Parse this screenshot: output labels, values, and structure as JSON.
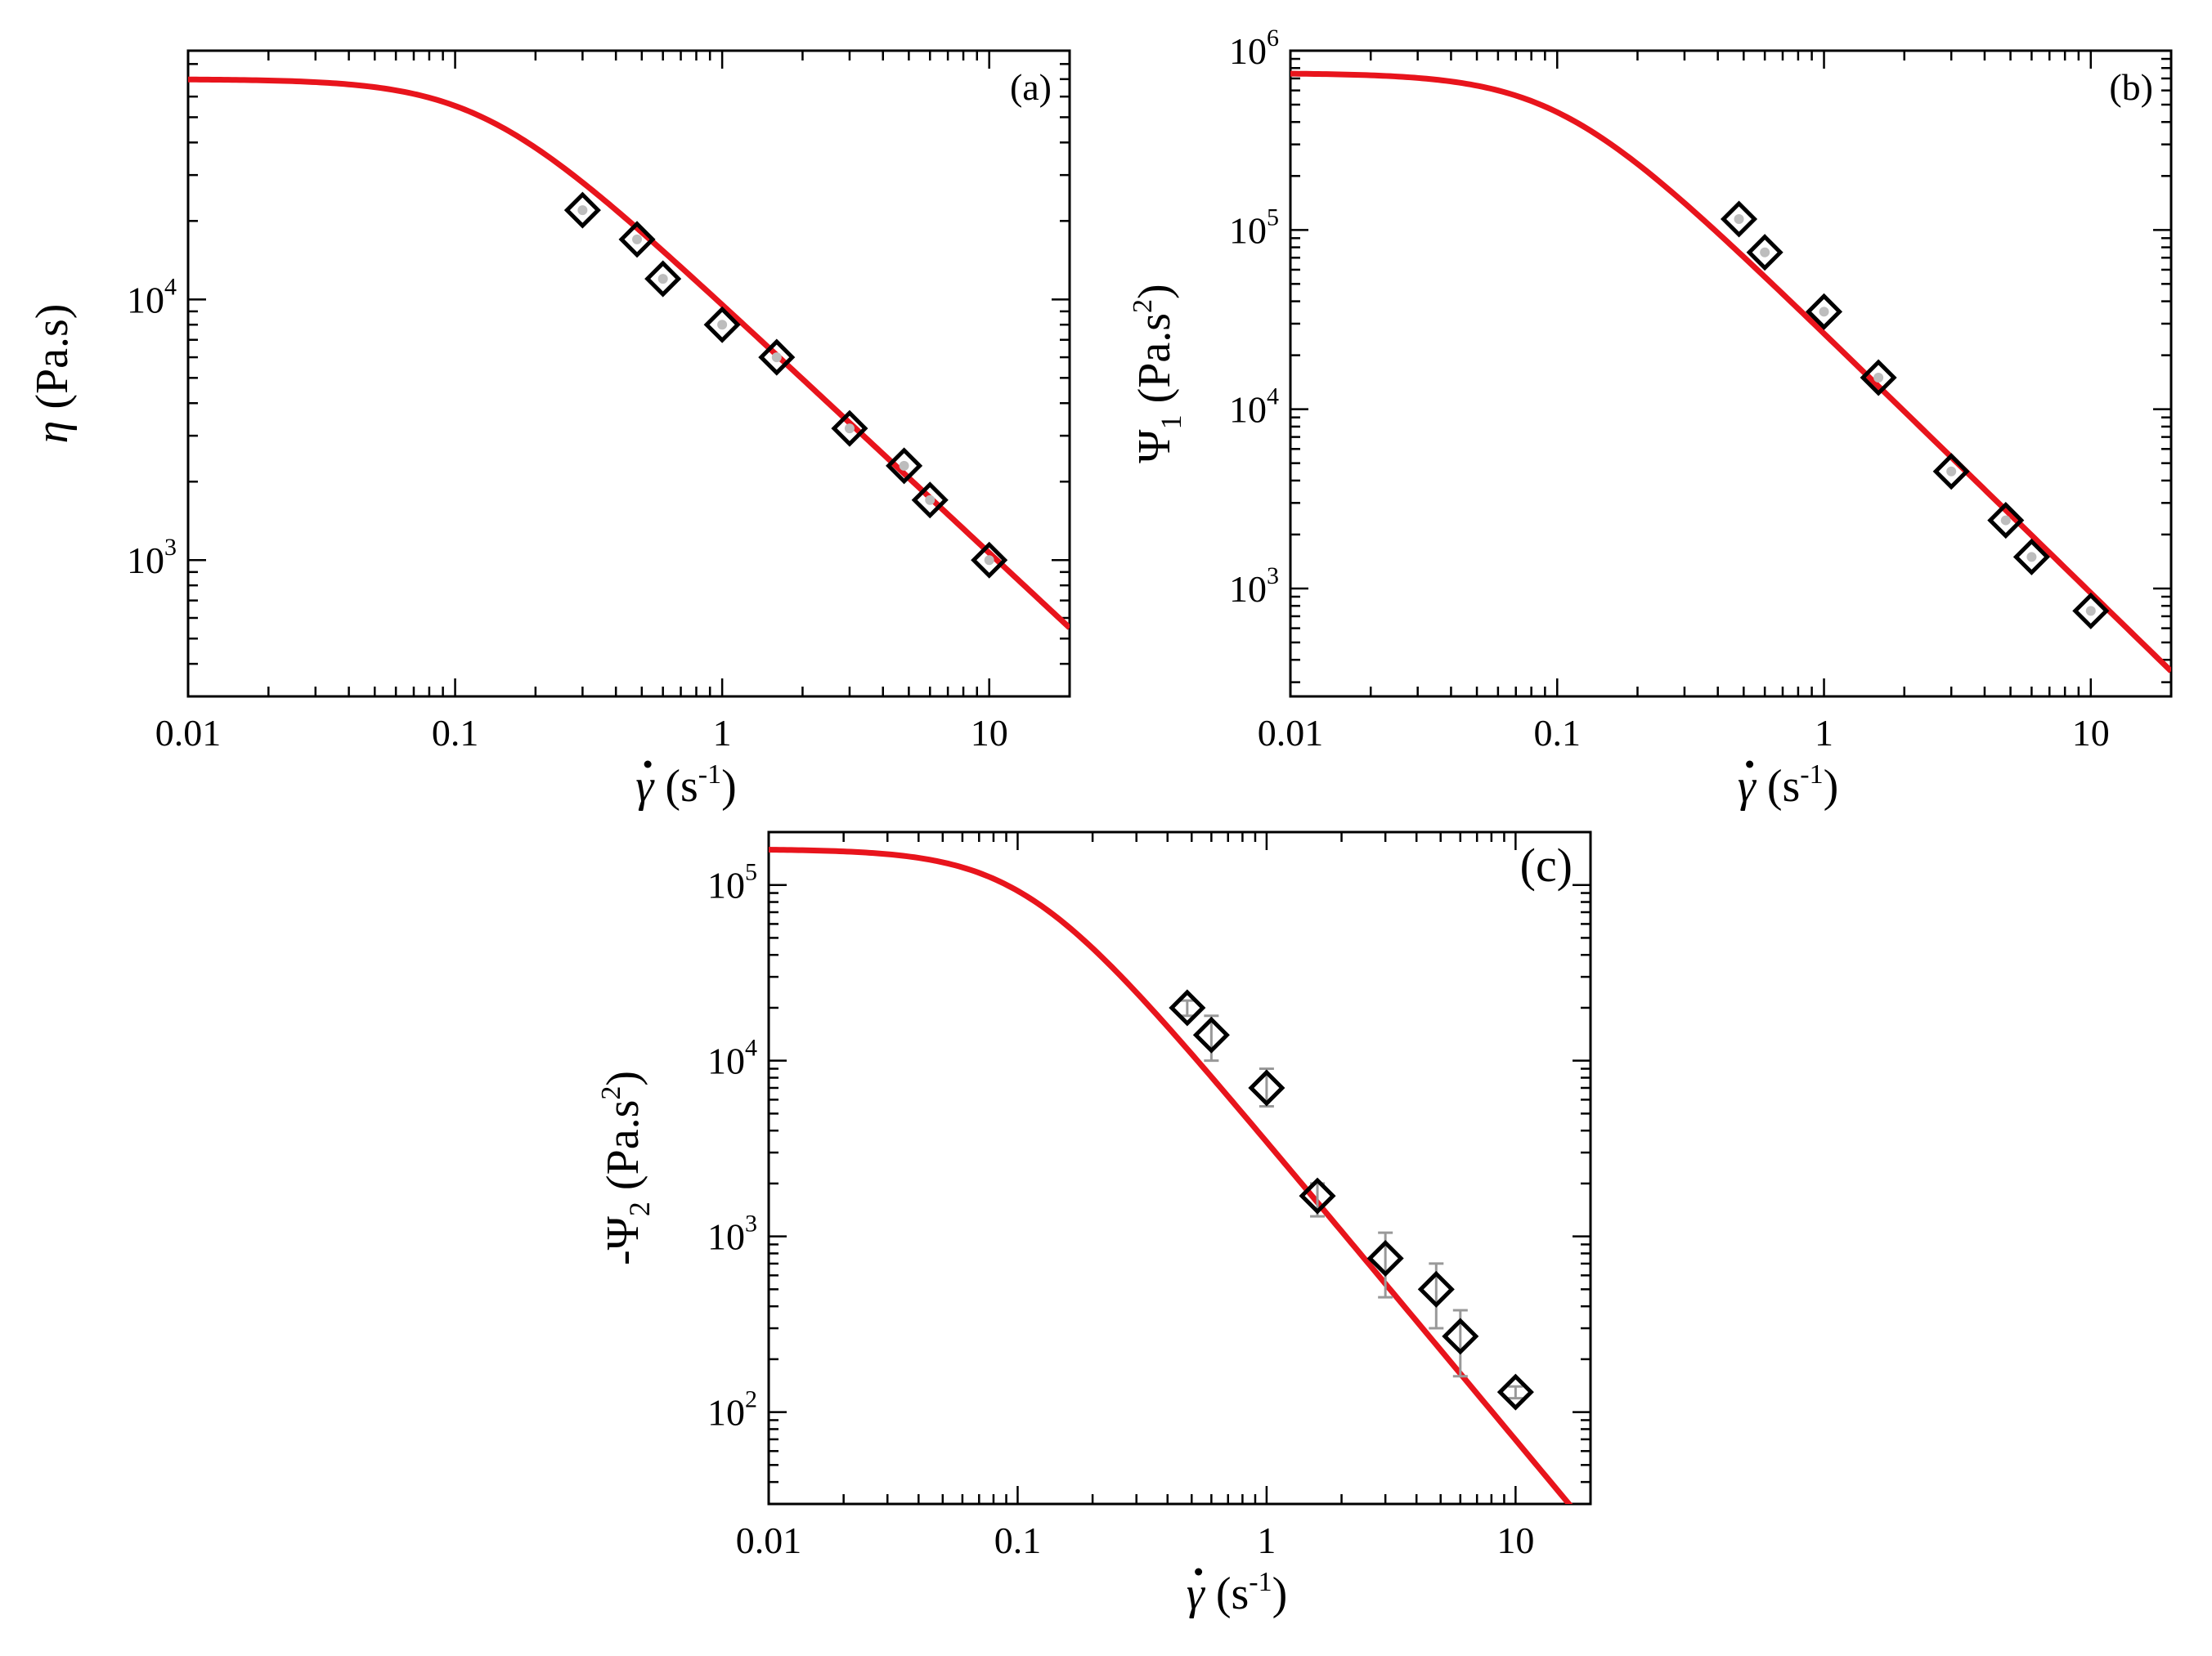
{
  "chart_data": [
    {
      "type": "scatter",
      "panel_label": "(a)",
      "xlabel_symbol": "γ",
      "xlabel_unit": " (s",
      "xlabel_exp": "-1",
      "xlabel_close": ")",
      "ylabel_symbol": "η",
      "ylabel_unit": " (Pa.s)",
      "x_scale": "log",
      "y_scale": "log",
      "xlim": [
        0.01,
        20
      ],
      "ylim": [
        300,
        90000
      ],
      "x_ticks": [
        0.01,
        0.1,
        1,
        10
      ],
      "x_tick_labels": [
        "0.01",
        "0.1",
        "1",
        "10"
      ],
      "y_ticks": [
        1000,
        10000
      ],
      "y_tick_labels": [
        {
          "base": "10",
          "exp": "3"
        },
        {
          "base": "10",
          "exp": "4"
        }
      ],
      "series": [
        {
          "kind": "markers",
          "marker": "diamond",
          "x": [
            0.3,
            0.48,
            0.6,
            1.0,
            1.6,
            3.0,
            4.8,
            6.0,
            10.0
          ],
          "y": [
            22000,
            17000,
            12000,
            8000,
            6000,
            3200,
            2300,
            1700,
            1000
          ]
        },
        {
          "kind": "line",
          "color": "#e8141c",
          "model": {
            "zero": 70000,
            "lambda": 8.0,
            "n": 0.045
          }
        }
      ]
    },
    {
      "type": "scatter",
      "panel_label": "(b)",
      "xlabel_symbol": "γ",
      "xlabel_unit": " (s",
      "xlabel_exp": "-1",
      "xlabel_close": ")",
      "ylabel_symbol": "Ψ",
      "ylabel_sub": "1",
      "ylabel_unit": " (Pa.s",
      "ylabel_exp": "2",
      "ylabel_close": ")",
      "x_scale": "log",
      "y_scale": "log",
      "xlim": [
        0.01,
        20
      ],
      "ylim": [
        250,
        1000000
      ],
      "x_ticks": [
        0.01,
        0.1,
        1,
        10
      ],
      "x_tick_labels": [
        "0.01",
        "0.1",
        "1",
        "10"
      ],
      "y_ticks": [
        1000,
        10000,
        100000,
        1000000
      ],
      "y_tick_labels": [
        {
          "base": "10",
          "exp": "3"
        },
        {
          "base": "10",
          "exp": "4"
        },
        {
          "base": "10",
          "exp": "5"
        },
        {
          "base": "10",
          "exp": "6"
        }
      ],
      "series": [
        {
          "kind": "markers",
          "marker": "diamond",
          "x": [
            0.48,
            0.6,
            1.0,
            1.6,
            3.0,
            4.8,
            6.0,
            10.0
          ],
          "y": [
            115000,
            75000,
            35000,
            15000,
            4500,
            2400,
            1500,
            750
          ]
        },
        {
          "kind": "line",
          "color": "#e8141c",
          "model": {
            "zero": 750000,
            "lambda": 10.0,
            "n": -0.45
          }
        }
      ]
    },
    {
      "type": "scatter",
      "panel_label": "(c)",
      "xlabel_symbol": "γ",
      "xlabel_unit": " (s",
      "xlabel_exp": "-1",
      "xlabel_close": ")",
      "ylabel_symbol": "-Ψ",
      "ylabel_sub": "2",
      "ylabel_unit": " (Pa.s",
      "ylabel_exp": "2",
      "ylabel_close": ")",
      "x_scale": "log",
      "y_scale": "log",
      "xlim": [
        0.01,
        20
      ],
      "ylim": [
        30,
        200000
      ],
      "x_ticks": [
        0.01,
        0.1,
        1,
        10
      ],
      "x_tick_labels": [
        "0.01",
        "0.1",
        "1",
        "10"
      ],
      "y_ticks": [
        100,
        1000,
        10000,
        100000
      ],
      "y_tick_labels": [
        {
          "base": "10",
          "exp": "2"
        },
        {
          "base": "10",
          "exp": "3"
        },
        {
          "base": "10",
          "exp": "4"
        },
        {
          "base": "10",
          "exp": "5"
        }
      ],
      "series": [
        {
          "kind": "markers",
          "marker": "diamond",
          "x": [
            0.48,
            0.6,
            1.0,
            1.6,
            3.0,
            4.8,
            6.0,
            10.0
          ],
          "y": [
            20000,
            14000,
            7000,
            1700,
            750,
            500,
            270,
            130
          ],
          "err_low": [
            18000,
            10000,
            5500,
            1300,
            450,
            300,
            160,
            120
          ],
          "err_high": [
            22000,
            18000,
            9000,
            2000,
            1050,
            700,
            380,
            140
          ]
        },
        {
          "kind": "line",
          "color": "#e8141c",
          "model": {
            "zero": 160000,
            "lambda": 9.5,
            "n": -0.7
          }
        }
      ]
    }
  ]
}
